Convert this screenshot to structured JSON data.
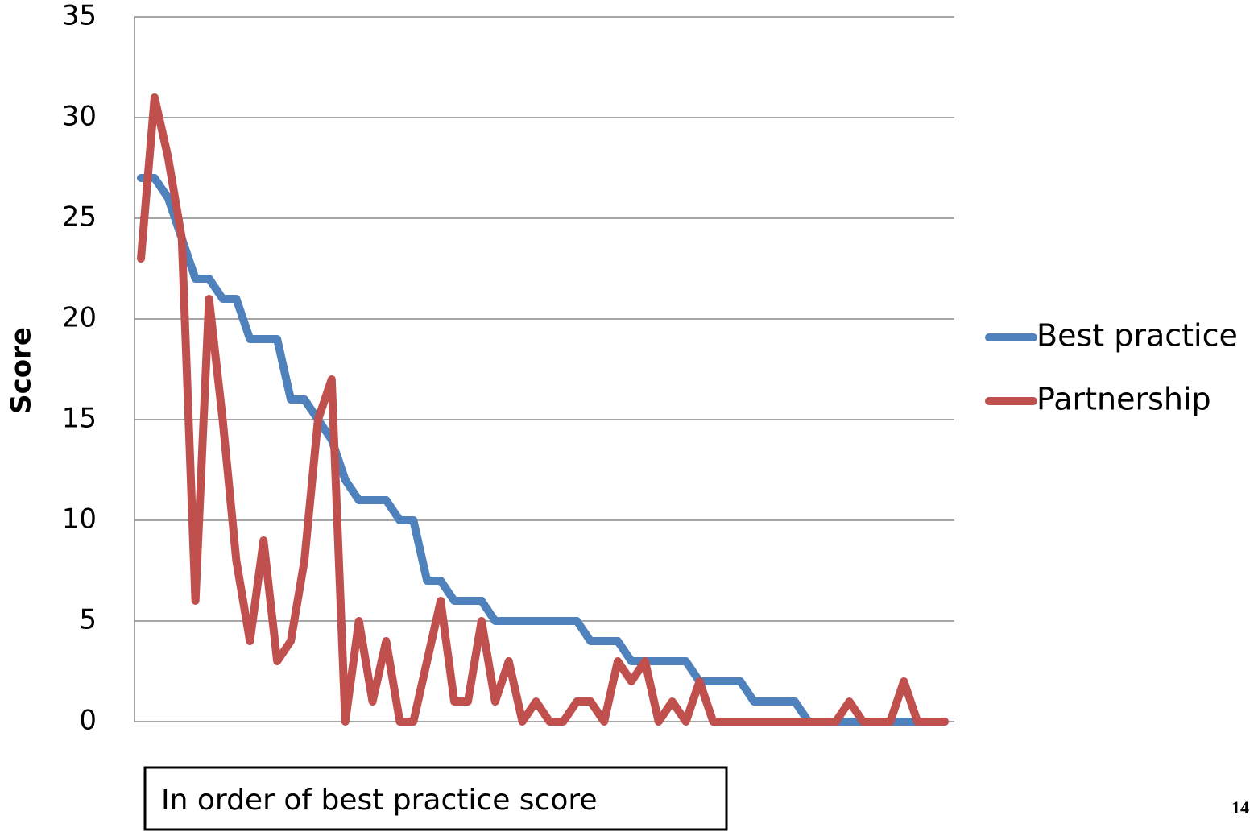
{
  "chart_data": {
    "type": "line",
    "y_label": "Score",
    "annotation": "In order of best practice score",
    "ylim": [
      0,
      35
    ],
    "yticks": [
      0,
      5,
      10,
      15,
      20,
      25,
      30,
      35
    ],
    "grid": true,
    "legend": "right",
    "series": [
      {
        "name": "Best practice",
        "color": "#4f81bd",
        "values": [
          27,
          27,
          26,
          24,
          22,
          22,
          21,
          21,
          19,
          19,
          19,
          16,
          16,
          15,
          14,
          12,
          11,
          11,
          11,
          10,
          10,
          7,
          7,
          6,
          6,
          6,
          5,
          5,
          5,
          5,
          5,
          5,
          5,
          4,
          4,
          4,
          3,
          3,
          3,
          3,
          3,
          2,
          2,
          2,
          2,
          1,
          1,
          1,
          1,
          0,
          0,
          0,
          0,
          0,
          0,
          0,
          0,
          0,
          0,
          0
        ]
      },
      {
        "name": "Partnership",
        "color": "#c0504d",
        "values": [
          23,
          31,
          28,
          24,
          6,
          21,
          15,
          8,
          4,
          9,
          3,
          4,
          8,
          15,
          17,
          0,
          5,
          1,
          4,
          0,
          0,
          3,
          6,
          1,
          1,
          5,
          1,
          3,
          0,
          1,
          0,
          0,
          1,
          1,
          0,
          3,
          2,
          3,
          0,
          1,
          0,
          2,
          0,
          0,
          0,
          0,
          0,
          0,
          0,
          0,
          0,
          0,
          1,
          0,
          0,
          0,
          2,
          0,
          0,
          0
        ]
      }
    ]
  },
  "page_number": "14"
}
